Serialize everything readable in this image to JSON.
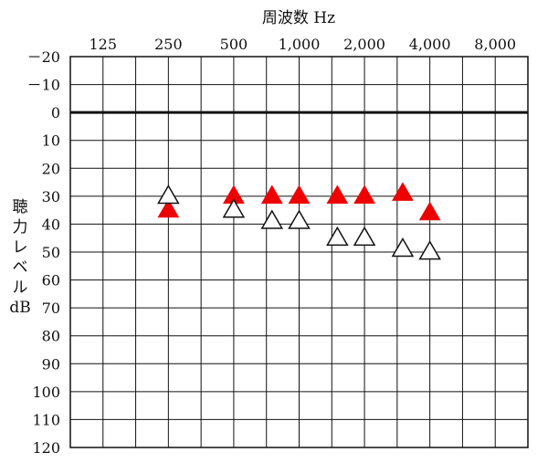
{
  "chart_data": {
    "type": "scatter",
    "title": "",
    "xlabel": "周波数 Hz",
    "ylabel": "聴力レベル dB",
    "ylabel_lines": [
      "聴",
      "力",
      "レ",
      "ベ",
      "ル",
      "dB"
    ],
    "x_scale": "log2",
    "x_ticks": [
      125,
      250,
      500,
      1000,
      2000,
      4000,
      8000
    ],
    "x_tick_labels": [
      "125",
      "250",
      "500",
      "1,000",
      "2,000",
      "4,000",
      "8,000"
    ],
    "x_range_octaves": [
      -0.5,
      6.5
    ],
    "y_inverted": true,
    "ylim": [
      -20,
      120
    ],
    "y_ticks": [
      -20,
      -10,
      0,
      10,
      20,
      30,
      40,
      50,
      60,
      70,
      80,
      90,
      100,
      110,
      120
    ],
    "y_tick_labels": [
      "－20",
      "－10",
      "0",
      "10",
      "20",
      "30",
      "40",
      "50",
      "60",
      "70",
      "80",
      "90",
      "100",
      "110",
      "120"
    ],
    "reference_line_y": 0,
    "grid": true,
    "series": [
      {
        "marker": "filled-triangle",
        "color": "#ee0000",
        "points": [
          {
            "x": 250,
            "y": 35
          },
          {
            "x": 500,
            "y": 30
          },
          {
            "x": 750,
            "y": 30
          },
          {
            "x": 1000,
            "y": 30
          },
          {
            "x": 1500,
            "y": 30
          },
          {
            "x": 2000,
            "y": 30
          },
          {
            "x": 3000,
            "y": 29
          },
          {
            "x": 4000,
            "y": 36
          }
        ]
      },
      {
        "marker": "open-triangle",
        "color": "#111111",
        "points": [
          {
            "x": 250,
            "y": 30
          },
          {
            "x": 500,
            "y": 35
          },
          {
            "x": 750,
            "y": 39
          },
          {
            "x": 1000,
            "y": 39
          },
          {
            "x": 1500,
            "y": 45
          },
          {
            "x": 2000,
            "y": 45
          },
          {
            "x": 3000,
            "y": 49
          },
          {
            "x": 4000,
            "y": 50
          }
        ]
      }
    ]
  }
}
